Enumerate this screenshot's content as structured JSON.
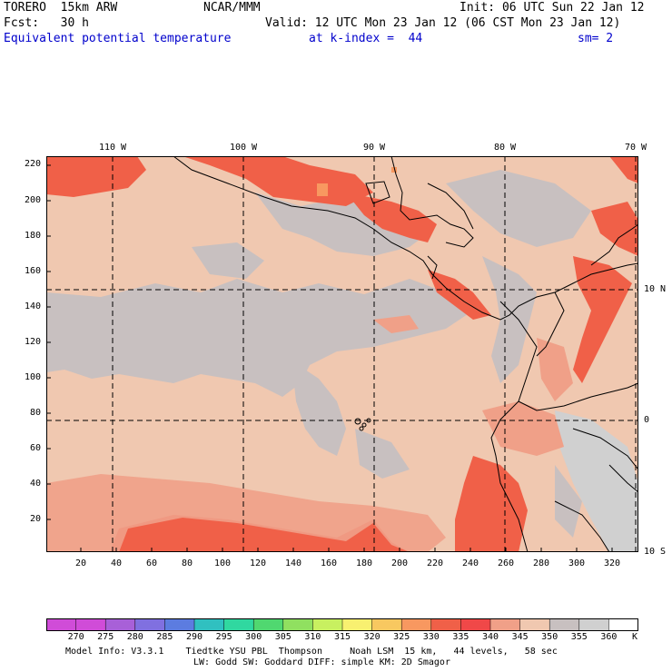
{
  "header": {
    "model": "TORERO  15km ARW",
    "center": "NCAR/MMM",
    "init": "Init: 06 UTC Sun 22 Jan 12",
    "fcst": "Fcst:   30 h",
    "valid": "Valid: 12 UTC Mon 23 Jan 12 (06 CST Mon 23 Jan 12)",
    "field": "Equivalent potential temperature",
    "level": "at k-index =  44",
    "smooth": "sm= 2"
  },
  "map": {
    "lon_labels": [
      "110 W",
      "100 W",
      "90 W",
      "80 W",
      "70 W"
    ],
    "lat_labels": [
      "10 N",
      "0",
      "10 S"
    ],
    "grid_y_labels": [
      "220",
      "200",
      "180",
      "160",
      "140",
      "120",
      "100",
      "80",
      "60",
      "40",
      "20"
    ],
    "grid_x_labels": [
      "20",
      "40",
      "60",
      "80",
      "100",
      "120",
      "140",
      "160",
      "180",
      "200",
      "220",
      "240",
      "260",
      "280",
      "300",
      "320"
    ]
  },
  "colorbar": {
    "unit": "K",
    "values": [
      "270",
      "275",
      "280",
      "285",
      "290",
      "295",
      "300",
      "305",
      "310",
      "315",
      "320",
      "325",
      "330",
      "335",
      "340",
      "345",
      "350",
      "355",
      "360"
    ],
    "colors": [
      "#d04cd8",
      "#a860d8",
      "#8070e0",
      "#5c7ce0",
      "#30c0c0",
      "#30d8a0",
      "#50d870",
      "#90e060",
      "#c8f060",
      "#f8f070",
      "#f8c860",
      "#f89860",
      "#f06048",
      "#f04848",
      "#f0a088",
      "#f0c8b0",
      "#c8c0c0",
      "#d0d0d0",
      "#ffffff"
    ]
  },
  "footer": {
    "line1": "Model Info: V3.3.1    Tiedtke YSU PBL  Thompson     Noah LSM  15 km,   44 levels,   58 sec",
    "line2": "LW: Godd SW: Goddard DIFF: simple KM: 2D Smagor"
  }
}
